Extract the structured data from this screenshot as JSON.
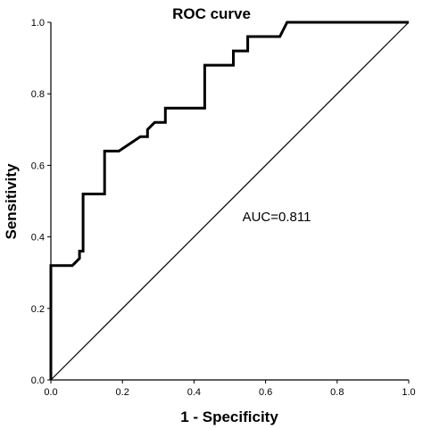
{
  "chart_data": {
    "type": "line",
    "title": "ROC curve",
    "xlabel": "1 - Specificity",
    "ylabel": "Sensitivity",
    "xlim": [
      0.0,
      1.0
    ],
    "ylim": [
      0.0,
      1.0
    ],
    "x_ticks": [
      "0.0",
      "0.2",
      "0.4",
      "0.6",
      "0.8",
      "1.0"
    ],
    "y_ticks": [
      "0.0",
      "0.2",
      "0.4",
      "0.6",
      "0.8",
      "1.0"
    ],
    "grid": false,
    "legend": "none",
    "annotation": "AUC=0.811",
    "series": [
      {
        "role": "roc-curve",
        "x": [
          0.0,
          0.0,
          0.06,
          0.08,
          0.08,
          0.09,
          0.09,
          0.15,
          0.15,
          0.19,
          0.25,
          0.27,
          0.27,
          0.29,
          0.32,
          0.32,
          0.43,
          0.43,
          0.49,
          0.51,
          0.51,
          0.55,
          0.55,
          0.64,
          0.66,
          1.0
        ],
        "y": [
          0.0,
          0.32,
          0.32,
          0.34,
          0.36,
          0.36,
          0.52,
          0.52,
          0.64,
          0.64,
          0.68,
          0.68,
          0.7,
          0.72,
          0.72,
          0.76,
          0.76,
          0.88,
          0.88,
          0.88,
          0.92,
          0.92,
          0.96,
          0.96,
          1.0,
          1.0
        ]
      },
      {
        "role": "reference-line",
        "x": [
          0.0,
          1.0
        ],
        "y": [
          0.0,
          1.0
        ]
      }
    ],
    "colors": {
      "curve": "#000000",
      "reference": "#000000",
      "axes": "#000000"
    }
  }
}
